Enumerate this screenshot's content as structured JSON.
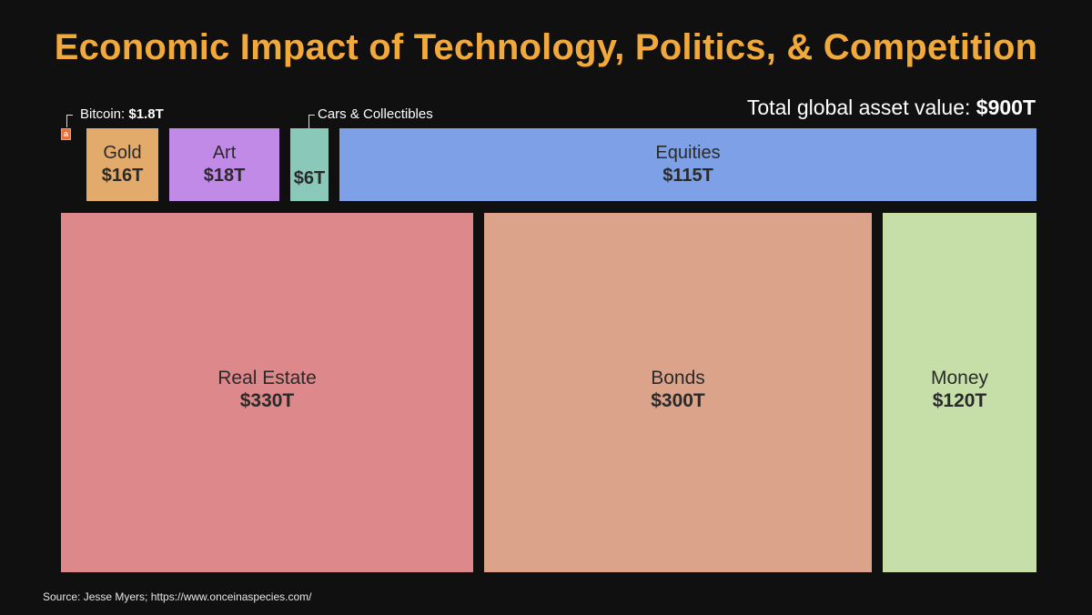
{
  "title": "Economic Impact of Technology, Politics, & Competition",
  "title_color": "#f2a93b",
  "total": {
    "label": "Total global asset value:",
    "value": "$900T"
  },
  "chart_data": {
    "type": "treemap",
    "unit": "trillion USD",
    "title": "Economic Impact of Technology, Politics, & Competition",
    "total_label": "Total global asset value: $900T",
    "items": [
      {
        "id": "bitcoin",
        "name": "Bitcoin",
        "value": 1.8,
        "display": "$1.8T",
        "color": "#e8713c",
        "marker": "a"
      },
      {
        "id": "gold",
        "name": "Gold",
        "value": 16,
        "display": "$16T",
        "color": "#e3ab6b"
      },
      {
        "id": "art",
        "name": "Art",
        "value": 18,
        "display": "$18T",
        "color": "#c18ae7"
      },
      {
        "id": "cars",
        "name": "Cars & Collectibles",
        "value": 6,
        "display": "$6T",
        "color": "#8ac9b9"
      },
      {
        "id": "equities",
        "name": "Equities",
        "value": 115,
        "display": "$115T",
        "color": "#7ea0e6"
      },
      {
        "id": "real-estate",
        "name": "Real Estate",
        "value": 330,
        "display": "$330T",
        "color": "#dd898b"
      },
      {
        "id": "bonds",
        "name": "Bonds",
        "value": 300,
        "display": "$300T",
        "color": "#dca38b"
      },
      {
        "id": "money",
        "name": "Money",
        "value": 120,
        "display": "$120T",
        "color": "#c6dfa9"
      }
    ]
  },
  "callouts": {
    "bitcoin": {
      "label": "Bitcoin:",
      "value": "$1.8T"
    },
    "cars": {
      "label": "Cars & Collectibles"
    }
  },
  "source": "Source: Jesse Myers; https://www.onceinaspecies.com/"
}
